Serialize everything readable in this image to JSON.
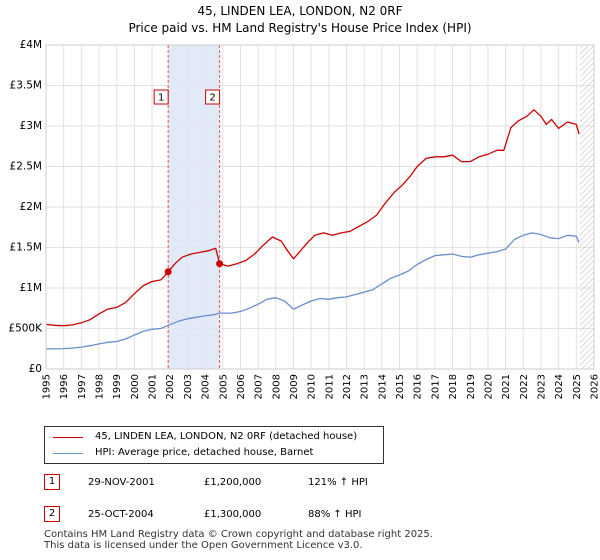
{
  "chart_data": {
    "type": "line",
    "title": "45, LINDEN LEA, LONDON, N2 0RF",
    "subtitle": "Price paid vs. HM Land Registry's House Price Index (HPI)",
    "xlim": [
      1995,
      2026
    ],
    "ylim": [
      0,
      4000000
    ],
    "x_ticks": [
      "1995",
      "1996",
      "1997",
      "1998",
      "1999",
      "2000",
      "2001",
      "2002",
      "2003",
      "2004",
      "2005",
      "2006",
      "2007",
      "2008",
      "2009",
      "2010",
      "2011",
      "2012",
      "2013",
      "2014",
      "2015",
      "2016",
      "2017",
      "2018",
      "2019",
      "2020",
      "2021",
      "2022",
      "2023",
      "2024",
      "2025",
      "2026"
    ],
    "y_ticks": [
      {
        "value": 0,
        "label": "£0"
      },
      {
        "value": 500000,
        "label": "£500K"
      },
      {
        "value": 1000000,
        "label": "£1M"
      },
      {
        "value": 1500000,
        "label": "£1.5M"
      },
      {
        "value": 2000000,
        "label": "£2M"
      },
      {
        "value": 2500000,
        "label": "£2.5M"
      },
      {
        "value": 3000000,
        "label": "£3M"
      },
      {
        "value": 3500000,
        "label": "£3.5M"
      },
      {
        "value": 4000000,
        "label": "£4M"
      }
    ],
    "grid": true,
    "shaded_period": [
      2001.91,
      2004.82
    ],
    "hatched_from": 2025.2,
    "series": [
      {
        "name": "45, LINDEN LEA, LONDON, N2 0RF (detached house)",
        "color": "#cc0000",
        "points": [
          [
            1995.0,
            550000
          ],
          [
            1995.5,
            540000
          ],
          [
            1996.0,
            535000
          ],
          [
            1996.5,
            545000
          ],
          [
            1997.0,
            570000
          ],
          [
            1997.5,
            610000
          ],
          [
            1998.0,
            680000
          ],
          [
            1998.5,
            740000
          ],
          [
            1999.0,
            760000
          ],
          [
            1999.5,
            820000
          ],
          [
            2000.0,
            930000
          ],
          [
            2000.5,
            1030000
          ],
          [
            2001.0,
            1080000
          ],
          [
            2001.5,
            1100000
          ],
          [
            2001.91,
            1200000
          ],
          [
            2002.3,
            1300000
          ],
          [
            2002.7,
            1380000
          ],
          [
            2003.2,
            1420000
          ],
          [
            2003.7,
            1440000
          ],
          [
            2004.2,
            1460000
          ],
          [
            2004.6,
            1490000
          ],
          [
            2004.82,
            1300000
          ],
          [
            2005.3,
            1270000
          ],
          [
            2005.8,
            1300000
          ],
          [
            2006.3,
            1340000
          ],
          [
            2006.8,
            1420000
          ],
          [
            2007.3,
            1530000
          ],
          [
            2007.8,
            1630000
          ],
          [
            2008.3,
            1580000
          ],
          [
            2008.7,
            1450000
          ],
          [
            2009.0,
            1360000
          ],
          [
            2009.4,
            1460000
          ],
          [
            2009.8,
            1560000
          ],
          [
            2010.2,
            1650000
          ],
          [
            2010.7,
            1680000
          ],
          [
            2011.2,
            1650000
          ],
          [
            2011.7,
            1680000
          ],
          [
            2012.2,
            1700000
          ],
          [
            2012.7,
            1760000
          ],
          [
            2013.2,
            1820000
          ],
          [
            2013.7,
            1900000
          ],
          [
            2014.2,
            2050000
          ],
          [
            2014.7,
            2180000
          ],
          [
            2015.2,
            2280000
          ],
          [
            2015.6,
            2380000
          ],
          [
            2016.0,
            2500000
          ],
          [
            2016.5,
            2600000
          ],
          [
            2017.0,
            2620000
          ],
          [
            2017.5,
            2620000
          ],
          [
            2018.0,
            2640000
          ],
          [
            2018.5,
            2560000
          ],
          [
            2019.0,
            2560000
          ],
          [
            2019.5,
            2620000
          ],
          [
            2020.0,
            2650000
          ],
          [
            2020.5,
            2700000
          ],
          [
            2020.9,
            2700000
          ],
          [
            2021.3,
            2980000
          ],
          [
            2021.7,
            3060000
          ],
          [
            2022.2,
            3120000
          ],
          [
            2022.6,
            3200000
          ],
          [
            2023.0,
            3120000
          ],
          [
            2023.3,
            3020000
          ],
          [
            2023.6,
            3080000
          ],
          [
            2024.0,
            2970000
          ],
          [
            2024.5,
            3050000
          ],
          [
            2025.0,
            3020000
          ],
          [
            2025.15,
            2900000
          ]
        ]
      },
      {
        "name": "HPI: Average price, detached house, Barnet",
        "color": "#6a8fcc",
        "points": [
          [
            1995.0,
            250000
          ],
          [
            1995.5,
            248000
          ],
          [
            1996.0,
            252000
          ],
          [
            1996.5,
            258000
          ],
          [
            1997.0,
            270000
          ],
          [
            1997.5,
            288000
          ],
          [
            1998.0,
            310000
          ],
          [
            1998.5,
            330000
          ],
          [
            1999.0,
            340000
          ],
          [
            1999.5,
            370000
          ],
          [
            2000.0,
            420000
          ],
          [
            2000.5,
            465000
          ],
          [
            2001.0,
            490000
          ],
          [
            2001.5,
            500000
          ],
          [
            2001.91,
            540000
          ],
          [
            2002.5,
            590000
          ],
          [
            2003.0,
            620000
          ],
          [
            2003.5,
            640000
          ],
          [
            2004.0,
            655000
          ],
          [
            2004.5,
            670000
          ],
          [
            2004.82,
            690000
          ],
          [
            2005.5,
            690000
          ],
          [
            2006.0,
            710000
          ],
          [
            2006.5,
            750000
          ],
          [
            2007.0,
            800000
          ],
          [
            2007.5,
            860000
          ],
          [
            2008.0,
            880000
          ],
          [
            2008.5,
            840000
          ],
          [
            2009.0,
            740000
          ],
          [
            2009.5,
            790000
          ],
          [
            2010.0,
            840000
          ],
          [
            2010.5,
            870000
          ],
          [
            2011.0,
            860000
          ],
          [
            2011.5,
            880000
          ],
          [
            2012.0,
            890000
          ],
          [
            2012.5,
            920000
          ],
          [
            2013.0,
            950000
          ],
          [
            2013.5,
            980000
          ],
          [
            2014.0,
            1050000
          ],
          [
            2014.5,
            1120000
          ],
          [
            2015.0,
            1160000
          ],
          [
            2015.5,
            1210000
          ],
          [
            2016.0,
            1290000
          ],
          [
            2016.5,
            1350000
          ],
          [
            2017.0,
            1400000
          ],
          [
            2017.5,
            1410000
          ],
          [
            2018.0,
            1420000
          ],
          [
            2018.5,
            1390000
          ],
          [
            2019.0,
            1380000
          ],
          [
            2019.5,
            1410000
          ],
          [
            2020.0,
            1430000
          ],
          [
            2020.5,
            1450000
          ],
          [
            2021.0,
            1480000
          ],
          [
            2021.5,
            1600000
          ],
          [
            2022.0,
            1650000
          ],
          [
            2022.5,
            1680000
          ],
          [
            2023.0,
            1660000
          ],
          [
            2023.5,
            1620000
          ],
          [
            2024.0,
            1610000
          ],
          [
            2024.5,
            1650000
          ],
          [
            2025.0,
            1640000
          ],
          [
            2025.15,
            1560000
          ]
        ]
      }
    ],
    "sales": [
      {
        "id": "1",
        "x": 2001.91,
        "y": 1200000
      },
      {
        "id": "2",
        "x": 2004.82,
        "y": 1300000
      }
    ]
  },
  "table": [
    {
      "id": "1",
      "date": "29-NOV-2001",
      "price": "£1,200,000",
      "hpi": "121% ↑ HPI"
    },
    {
      "id": "2",
      "date": "25-OCT-2004",
      "price": "£1,300,000",
      "hpi": "88% ↑ HPI"
    }
  ],
  "footer": {
    "line1": "Contains HM Land Registry data © Crown copyright and database right 2025.",
    "line2": "This data is licensed under the Open Government Licence v3.0."
  }
}
